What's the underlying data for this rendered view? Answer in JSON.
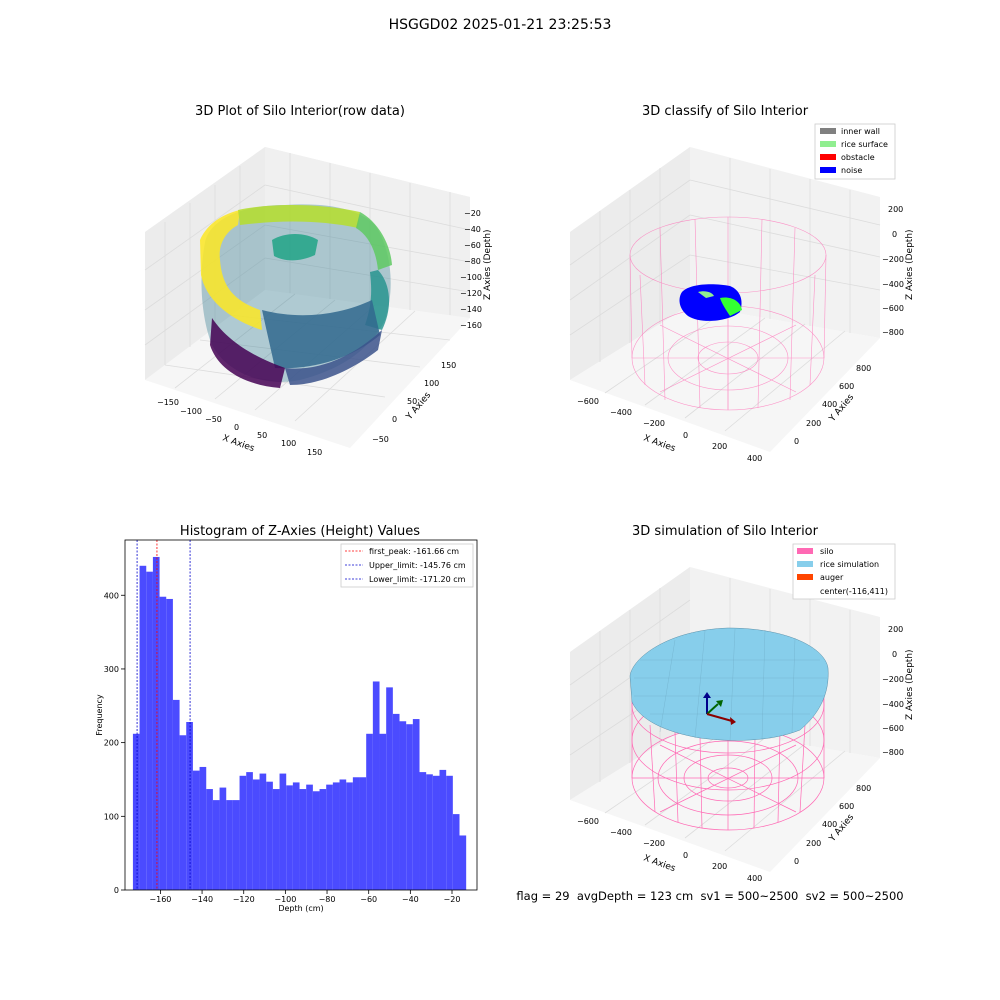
{
  "suptitle": "HSGGD02 2025-01-21 23:25:53",
  "footer": {
    "text": "flag = 29  avgDepth = 123 cm  sv1 = 500~2500  sv2 = 500~2500"
  },
  "chart_data": [
    {
      "type": "scatter",
      "projection": "3d",
      "title": "3D Plot of Silo Interior(row data)",
      "xlabel": "X Axies",
      "ylabel": "Y Axies",
      "zlabel": "Z Axies (Depth)",
      "xticks": [
        "−150",
        "−100",
        "−50",
        "0",
        "50",
        "100",
        "150"
      ],
      "yticks": [
        "−50",
        "0",
        "50",
        "100",
        "150"
      ],
      "zticks": [
        "−20",
        "−40",
        "−60",
        "−80",
        "−100",
        "−120",
        "−140",
        "−160"
      ],
      "xlim": [
        -170,
        170
      ],
      "ylim": [
        -70,
        170
      ],
      "zlim": [
        -175,
        -10
      ],
      "colormap": "viridis",
      "grid": true
    },
    {
      "type": "scatter",
      "projection": "3d",
      "title": "3D classify of Silo Interior",
      "xlabel": "X Axies",
      "ylabel": "Y Axies",
      "zlabel": "Z Axies (Depth)",
      "xticks": [
        "−600",
        "−400",
        "−200",
        "0",
        "200",
        "400"
      ],
      "yticks": [
        "0",
        "200",
        "400",
        "600",
        "800"
      ],
      "zticks": [
        "200",
        "0",
        "−200",
        "−400",
        "−600",
        "−800"
      ],
      "legend": {
        "position": "top-right",
        "entries": [
          {
            "name": "inner wall",
            "color": "#808080"
          },
          {
            "name": "rice surface",
            "color": "#90ee90"
          },
          {
            "name": "obstacle",
            "color": "#ff0000"
          },
          {
            "name": "noise",
            "color": "#0000ff"
          }
        ]
      },
      "grid": true
    },
    {
      "type": "bar",
      "title": "Histogram of Z-Axies (Height) Values",
      "xlabel": "Depth (cm)",
      "ylabel": "Frequency",
      "xlim": [
        -177,
        -8
      ],
      "ylim": [
        0,
        475
      ],
      "xticks": [
        -160,
        -140,
        -120,
        -100,
        -80,
        -60,
        -40,
        -20
      ],
      "yticks": [
        0,
        100,
        200,
        300,
        400
      ],
      "bin_start": -173.2,
      "bin_width": 3.2,
      "values": [
        212,
        440,
        432,
        452,
        398,
        395,
        258,
        210,
        228,
        162,
        167,
        137,
        122,
        139,
        122,
        122,
        155,
        160,
        150,
        158,
        147,
        137,
        158,
        142,
        146,
        137,
        143,
        134,
        137,
        143,
        146,
        150,
        146,
        153,
        153,
        212,
        283,
        212,
        275,
        239,
        229,
        225,
        232,
        160,
        157,
        155,
        163,
        155,
        103,
        74
      ],
      "bar_color": "#4b4bff",
      "lines": [
        {
          "label": "first_peak: -161.66 cm",
          "x": -161.66,
          "color": "#ff0000"
        },
        {
          "label": "Upper_limit: -145.76 cm",
          "x": -145.76,
          "color": "#0000cc"
        },
        {
          "label": "Lower_limit: -171.20 cm",
          "x": -171.2,
          "color": "#0000cc"
        }
      ],
      "legend": {
        "position": "top-right"
      },
      "grid": false
    },
    {
      "type": "surface",
      "projection": "3d",
      "title": "3D simulation of Silo Interior",
      "xlabel": "X Axies",
      "ylabel": "Y Axies",
      "zlabel": "Z Axies (Depth)",
      "xticks": [
        "−600",
        "−400",
        "−200",
        "0",
        "200",
        "400"
      ],
      "yticks": [
        "0",
        "200",
        "400",
        "600",
        "800"
      ],
      "zticks": [
        "200",
        "0",
        "−200",
        "−400",
        "−600",
        "−800"
      ],
      "legend": {
        "position": "top-right",
        "entries": [
          {
            "name": "silo",
            "color": "#ff69b4"
          },
          {
            "name": "rice simulation",
            "color": "#87ceeb"
          },
          {
            "name": "auger",
            "color": "#ff4500"
          },
          {
            "name": "center(-116,411)",
            "color": ""
          }
        ]
      },
      "grid": true
    }
  ]
}
